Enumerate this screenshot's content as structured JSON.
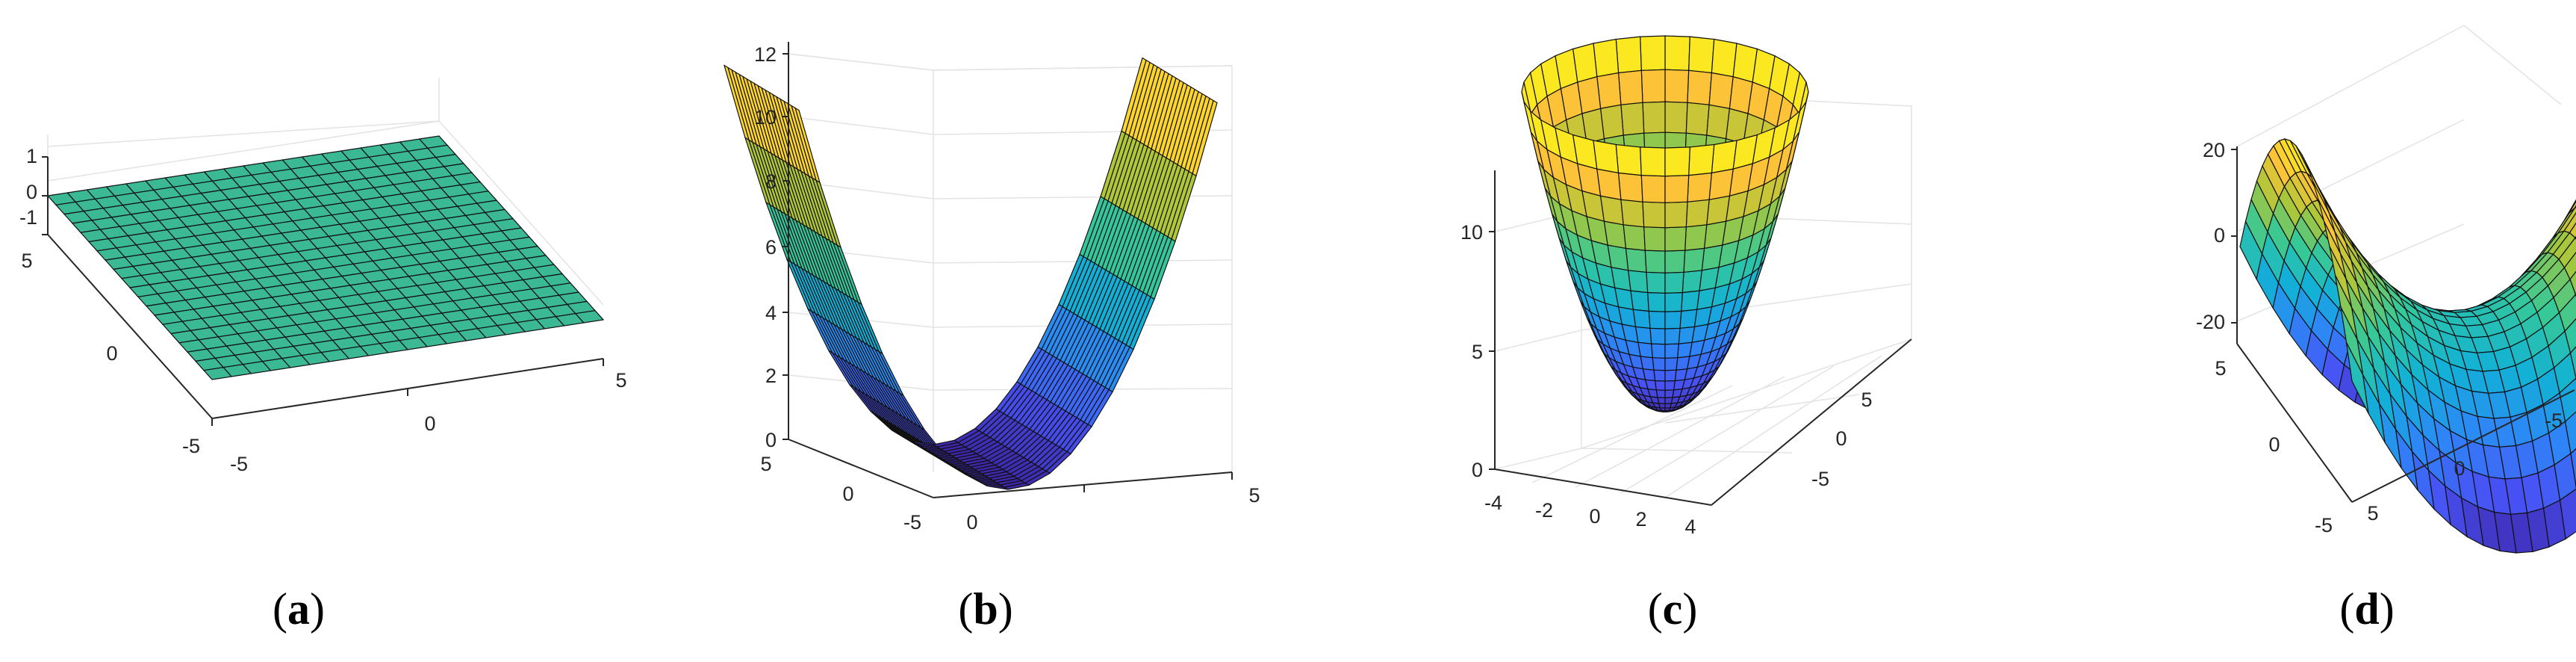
{
  "colors": {
    "flat_surface": "#3bb894",
    "edge": "#111111",
    "axis": "#262626",
    "grid": "#e3e3e3",
    "colormap": "parula"
  },
  "chart_data": [
    {
      "type": "surface",
      "panel": "a",
      "caption": {
        "open": "(",
        "letter": "a",
        "close": ")"
      },
      "function": "z = 0",
      "x_ticks": [
        "-5",
        "0",
        "5"
      ],
      "y_ticks": [
        "-5",
        "0",
        "5"
      ],
      "z_ticks": [
        "-1",
        "0",
        "1"
      ],
      "xlim": [
        -5,
        5
      ],
      "ylim": [
        -5,
        5
      ],
      "zlim": [
        -1,
        1
      ],
      "grid_count": 21
    },
    {
      "type": "surface",
      "panel": "b",
      "caption": {
        "open": "(",
        "letter": "b",
        "close": ")"
      },
      "function": "z = x^2 / 2",
      "x_ticks": [
        "0",
        "5"
      ],
      "y_ticks": [
        "-5",
        "0",
        "5"
      ],
      "z_ticks": [
        "0",
        "2",
        "4",
        "6",
        "8",
        "10",
        "12"
      ],
      "xlim": [
        -5,
        5
      ],
      "ylim": [
        -5,
        5
      ],
      "zlim": [
        0,
        12.5
      ],
      "grid_count": 21
    },
    {
      "type": "surface",
      "panel": "c",
      "caption": {
        "open": "(",
        "letter": "c",
        "close": ")"
      },
      "function": "z = (x^2 + y^2) / 2",
      "x_ticks": [
        "-4",
        "-2",
        "0",
        "2",
        "4"
      ],
      "y_ticks": [
        "-5",
        "0",
        "5"
      ],
      "z_ticks": [
        "0",
        "5",
        "10"
      ],
      "xlim": [
        -5,
        5
      ],
      "ylim": [
        -5,
        5
      ],
      "zlim": [
        0,
        12.5
      ],
      "grid_count": 21
    },
    {
      "type": "surface",
      "panel": "d",
      "caption": {
        "open": "(",
        "letter": "d",
        "close": ")"
      },
      "function": "z = (x^2 - y^2) / 2",
      "x_ticks": [
        "5",
        "0",
        "-5"
      ],
      "y_ticks": [
        "5",
        "0",
        "-5"
      ],
      "z_ticks": [
        "-20",
        "0",
        "20"
      ],
      "xlim": [
        -5,
        5
      ],
      "ylim": [
        -5,
        5
      ],
      "zlim": [
        -25,
        25
      ],
      "grid_count": 21
    }
  ]
}
